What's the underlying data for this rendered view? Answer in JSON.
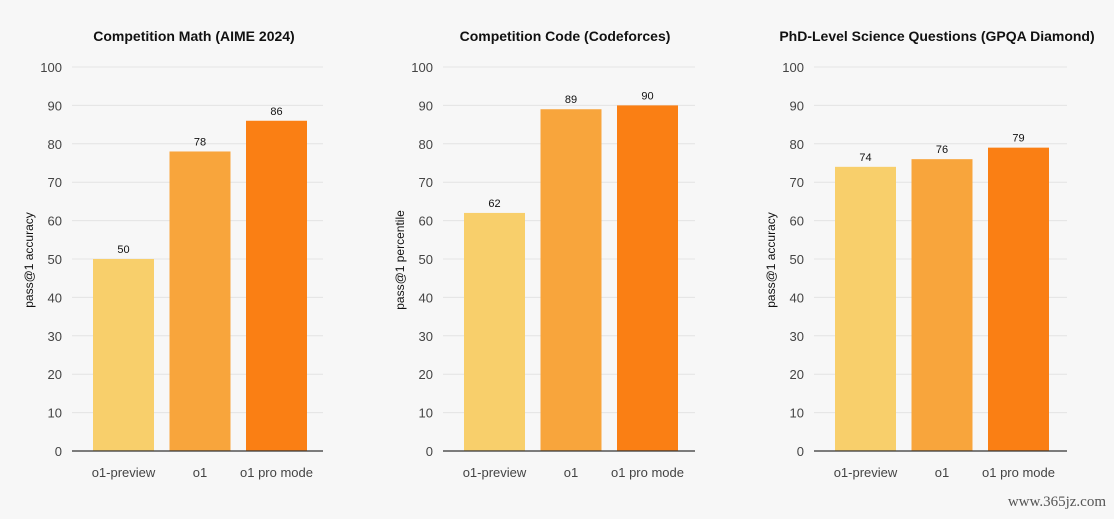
{
  "colors": {
    "background": "#f7f7f7",
    "grid": "#e4e4e4",
    "axis": "#333333",
    "text": "#111111",
    "tick_text": "#444444",
    "bars": [
      "#f8cf6b",
      "#f8a53c",
      "#fa7f14"
    ]
  },
  "chart_data": [
    {
      "type": "bar",
      "title": "Competition Math (AIME 2024)",
      "ylabel": "pass@1 accuracy",
      "xlabel": "",
      "categories": [
        "o1-preview",
        "o1",
        "o1 pro mode"
      ],
      "values": [
        50,
        78,
        86
      ],
      "ylim": [
        0,
        100
      ],
      "yticks": [
        0,
        10,
        20,
        30,
        40,
        50,
        60,
        70,
        80,
        90,
        100
      ],
      "grid": true
    },
    {
      "type": "bar",
      "title": "Competition Code (Codeforces)",
      "ylabel": "pass@1 percentile",
      "xlabel": "",
      "categories": [
        "o1-preview",
        "o1",
        "o1 pro mode"
      ],
      "values": [
        62,
        89,
        90
      ],
      "ylim": [
        0,
        100
      ],
      "yticks": [
        0,
        10,
        20,
        30,
        40,
        50,
        60,
        70,
        80,
        90,
        100
      ],
      "grid": true
    },
    {
      "type": "bar",
      "title": "PhD-Level Science Questions (GPQA Diamond)",
      "ylabel": "pass@1 accuracy",
      "xlabel": "",
      "categories": [
        "o1-preview",
        "o1",
        "o1 pro mode"
      ],
      "values": [
        74,
        76,
        79
      ],
      "ylim": [
        0,
        100
      ],
      "yticks": [
        0,
        10,
        20,
        30,
        40,
        50,
        60,
        70,
        80,
        90,
        100
      ],
      "grid": true
    }
  ],
  "watermark": "www.365jz.com"
}
